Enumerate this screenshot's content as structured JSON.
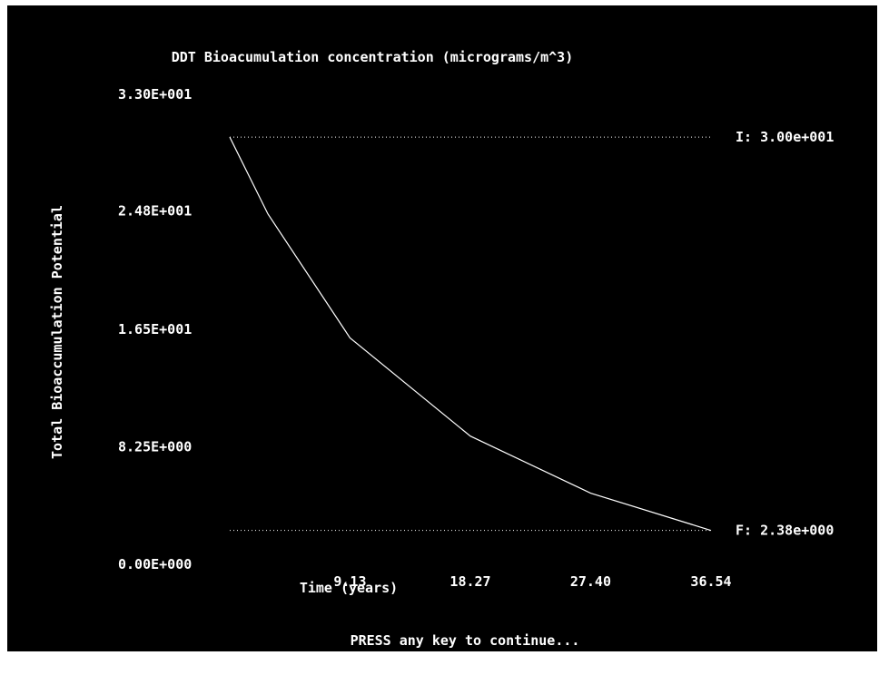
{
  "chart_data": {
    "type": "line",
    "title": "DDT Bioacumulation concentration (micrograms/m^3)",
    "xlabel": "Time (years)",
    "ylabel": "Total Bioaccumulation Potential",
    "ylim": [
      0,
      33
    ],
    "xlim": [
      0,
      36.54
    ],
    "y_tick_labels": [
      "3.30E+001",
      "2.48E+001",
      "1.65E+001",
      "8.25E+000",
      "0.00E+000"
    ],
    "y_tick_values": [
      33,
      24.8,
      16.5,
      8.25,
      0
    ],
    "x_tick_labels": [
      "9.13",
      "18.27",
      "27.40",
      "36.54"
    ],
    "x_tick_values": [
      9.13,
      18.27,
      27.4,
      36.54
    ],
    "series": [
      {
        "x": [
          0,
          2.9,
          9.13,
          18.27,
          27.4,
          36.54
        ],
        "values": [
          30.0,
          24.6,
          15.9,
          9.0,
          5.0,
          2.38
        ]
      }
    ],
    "reference_lines": [
      {
        "label": "I: 3.00e+001",
        "value": 30.0
      },
      {
        "label": "F: 2.38e+000",
        "value": 2.38
      }
    ],
    "grid": false,
    "colors": {
      "background": "#000000",
      "foreground": "#ffffff"
    }
  },
  "footer": {
    "prompt": "PRESS any key to continue..."
  }
}
